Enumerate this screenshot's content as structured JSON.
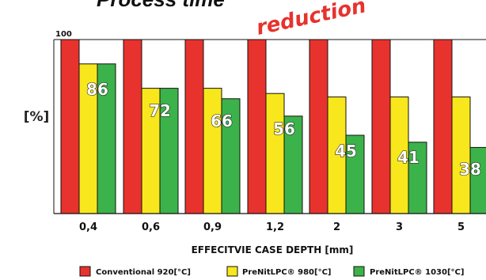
{
  "chart_data": {
    "type": "bar",
    "title": "Process time",
    "annotation": "reduction",
    "xlabel": "EFFECITVIE CASE DEPTH [mm]",
    "ylabel": "[%]",
    "y_max_label": "100",
    "ylim": [
      0,
      100
    ],
    "grid": false,
    "legend_position": "bottom",
    "categories": [
      "0,4",
      "0,6",
      "0,9",
      "1,2",
      "2",
      "3",
      "5"
    ],
    "series": [
      {
        "name": "Conventional 920[°C]",
        "color": "#e8322d",
        "values": [
          100,
          100,
          100,
          100,
          100,
          100,
          100
        ]
      },
      {
        "name": "PreNitLPC® 980[°C]",
        "color": "#f8e71c",
        "values": [
          86,
          72,
          72,
          69,
          67,
          67,
          67
        ]
      },
      {
        "name": "PreNitLPC® 1030[°C]",
        "color": "#3cb24a",
        "values": [
          86,
          72,
          66,
          56,
          45,
          41,
          38
        ]
      }
    ],
    "data_labels": [
      "86",
      "72",
      "66",
      "56",
      "45",
      "41",
      "38"
    ]
  }
}
